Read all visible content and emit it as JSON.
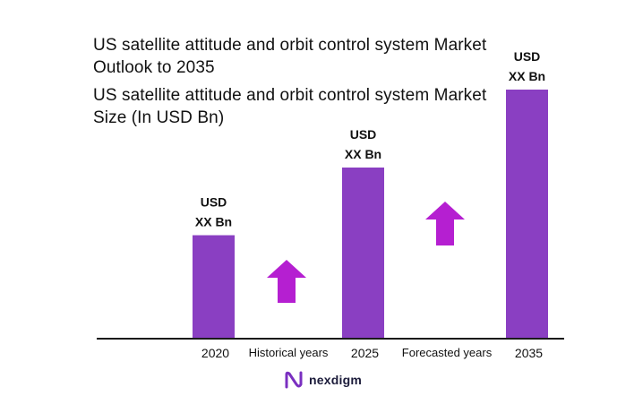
{
  "chart_data": {
    "type": "bar",
    "title": "US satellite attitude and orbit control system Market Outlook to 2035",
    "subtitle": "US satellite attitude and orbit control system Market Size (In USD Bn)",
    "categories": [
      "2020",
      "2025",
      "2035"
    ],
    "values": [
      1.0,
      1.66,
      2.42
    ],
    "value_labels": [
      [
        "USD",
        "XX Bn"
      ],
      [
        "USD",
        "XX Bn"
      ],
      [
        "USD",
        "XX Bn"
      ]
    ],
    "period_labels": [
      "Historical years",
      "Forecasted years"
    ],
    "ylim": [
      0,
      2.5
    ],
    "grid": false,
    "bar_color": "#8a3fc2",
    "arrow_color": "#b51fd1"
  },
  "brand": {
    "name": "nexdigm",
    "logo_color": "#7a2fc0"
  }
}
